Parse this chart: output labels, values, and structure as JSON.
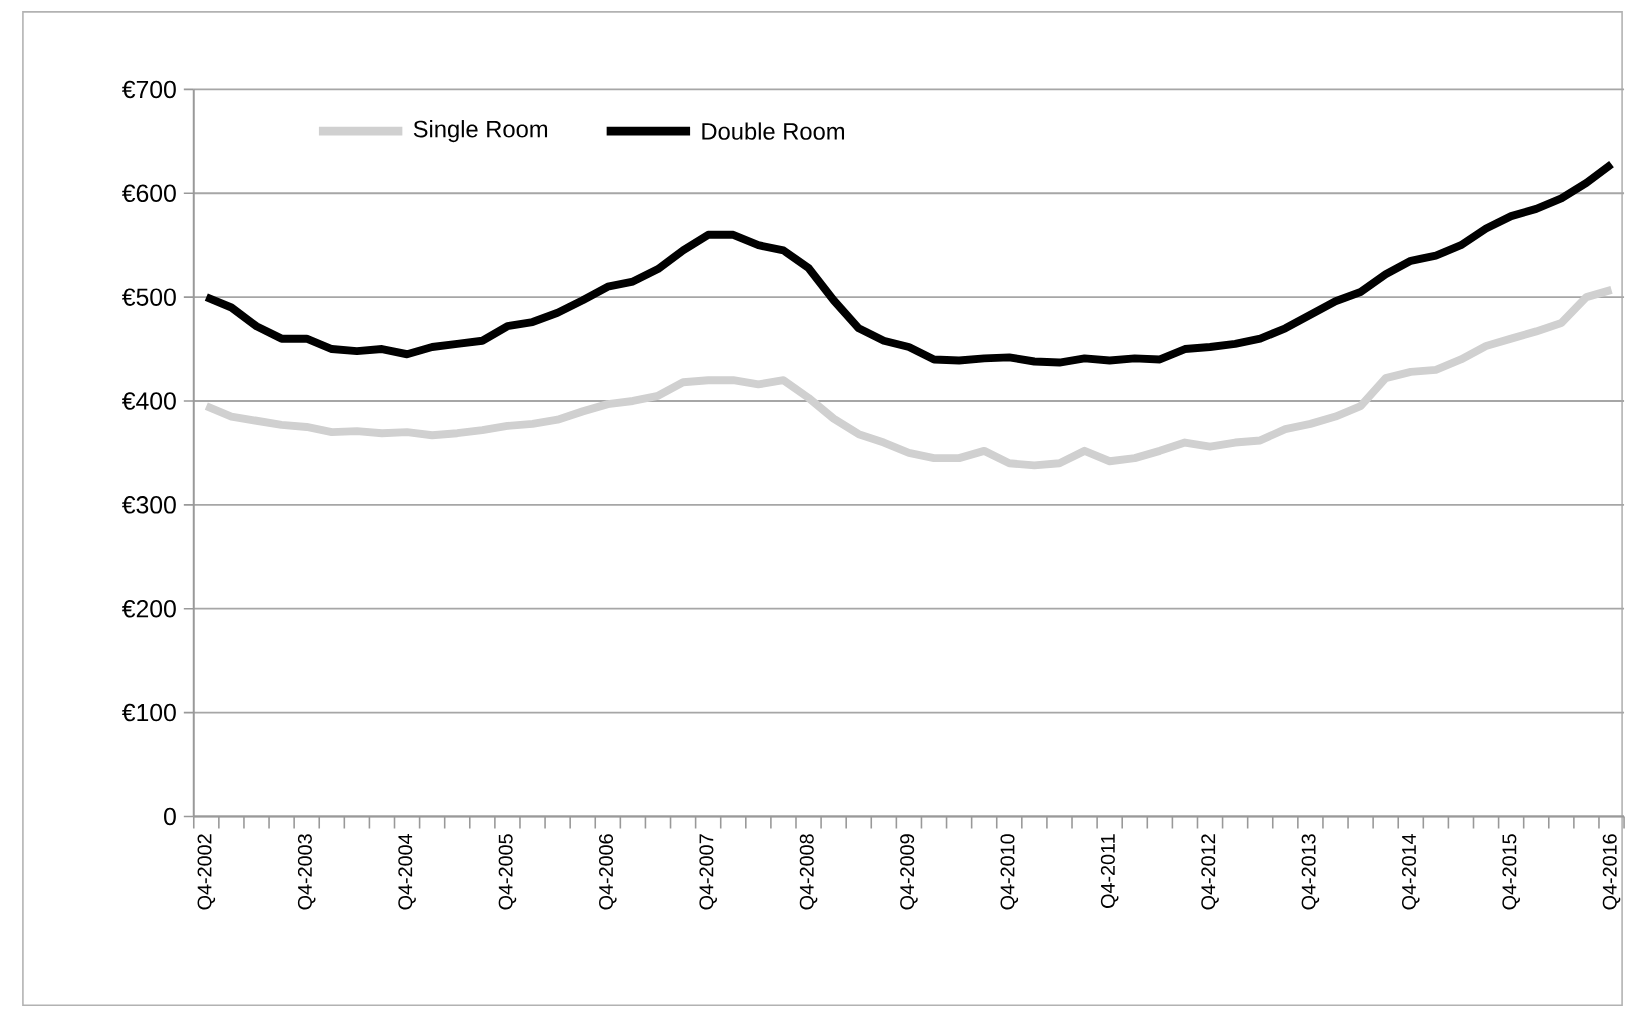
{
  "chart_data": {
    "type": "line",
    "categories": [
      "Q4-2002",
      null,
      null,
      null,
      "Q4-2003",
      null,
      null,
      null,
      "Q4-2004",
      null,
      null,
      null,
      "Q4-2005",
      null,
      null,
      null,
      "Q4-2006",
      null,
      null,
      null,
      "Q4-2007",
      null,
      null,
      null,
      "Q4-2008",
      null,
      null,
      null,
      "Q4-2009",
      null,
      null,
      null,
      "Q4-2010",
      null,
      null,
      null,
      "Q4-2011",
      null,
      null,
      null,
      "Q4-2012",
      null,
      null,
      null,
      "Q4-2013",
      null,
      null,
      null,
      "Q4-2014",
      null,
      null,
      null,
      "Q4-2015",
      null,
      null,
      null,
      "Q4-2016"
    ],
    "series": [
      {
        "name": "Single Room",
        "color": "#d0d0d0",
        "values": [
          395,
          385,
          381,
          377,
          375,
          370,
          371,
          369,
          370,
          367,
          369,
          372,
          376,
          378,
          382,
          390,
          397,
          400,
          405,
          418,
          420,
          420,
          416,
          420,
          403,
          383,
          368,
          360,
          350,
          345,
          345,
          352,
          340,
          338,
          340,
          352,
          342,
          345,
          352,
          360,
          356,
          360,
          362,
          373,
          378,
          385,
          395,
          422,
          428,
          430,
          440,
          453,
          460,
          467,
          475,
          500,
          507
        ]
      },
      {
        "name": "Double Room",
        "color": "#000000",
        "values": [
          500,
          490,
          472,
          460,
          460,
          450,
          448,
          450,
          445,
          452,
          455,
          458,
          472,
          476,
          485,
          497,
          510,
          515,
          527,
          545,
          560,
          560,
          550,
          545,
          528,
          497,
          470,
          458,
          452,
          440,
          439,
          441,
          442,
          438,
          437,
          441,
          439,
          441,
          440,
          450,
          452,
          455,
          460,
          470,
          483,
          496,
          505,
          522,
          535,
          540,
          550,
          566,
          578,
          585,
          595,
          610,
          628
        ]
      }
    ],
    "ylim": [
      0,
      700
    ],
    "yticks": [
      0,
      {
        "value": 100,
        "label": "€100"
      },
      {
        "value": 200,
        "label": "€200"
      },
      {
        "value": 300,
        "label": "€300"
      },
      {
        "value": 400,
        "label": "€400"
      },
      {
        "value": 500,
        "label": "€500"
      },
      {
        "value": 600,
        "label": "€600"
      },
      {
        "value": 700,
        "label": "€700"
      }
    ],
    "grid": "y",
    "legend": "top",
    "marker": "none",
    "line_style": "solid"
  }
}
